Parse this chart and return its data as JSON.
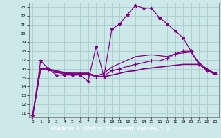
{
  "xlabel": "Windchill (Refroidissement éolien,°C)",
  "bg_color": "#cce8e8",
  "grid_color": "#aacccc",
  "line_color": "#800080",
  "xlabel_bg": "#660066",
  "xlabel_fg": "#ffffff",
  "xlim": [
    -0.5,
    23.5
  ],
  "ylim": [
    10.5,
    23.5
  ],
  "xticks": [
    0,
    1,
    2,
    3,
    4,
    5,
    6,
    7,
    8,
    9,
    10,
    11,
    12,
    13,
    14,
    15,
    16,
    17,
    18,
    19,
    20,
    21,
    22,
    23
  ],
  "yticks": [
    11,
    12,
    13,
    14,
    15,
    16,
    17,
    18,
    19,
    20,
    21,
    22,
    23
  ],
  "series": [
    {
      "x": [
        0,
        1,
        2,
        3,
        4,
        5,
        6,
        7,
        8,
        9,
        10,
        11,
        12,
        13,
        14,
        15,
        16,
        17,
        18,
        19,
        20,
        21,
        22,
        23
      ],
      "y": [
        10.7,
        16.9,
        16.0,
        15.3,
        15.3,
        15.3,
        15.3,
        14.6,
        18.5,
        15.1,
        20.5,
        21.1,
        22.2,
        23.2,
        22.9,
        22.9,
        21.8,
        21.1,
        20.3,
        19.5,
        18.0,
        16.5,
        15.9,
        15.5
      ],
      "marker": "*",
      "markersize": 3.5,
      "linewidth": 0.9
    },
    {
      "x": [
        0,
        1,
        2,
        3,
        4,
        5,
        6,
        7,
        8,
        9,
        10,
        11,
        12,
        13,
        14,
        15,
        16,
        17,
        18,
        19,
        20,
        21,
        22,
        23
      ],
      "y": [
        10.7,
        16.0,
        16.0,
        15.6,
        15.4,
        15.4,
        15.4,
        15.4,
        15.1,
        15.2,
        15.8,
        16.0,
        16.3,
        16.5,
        16.7,
        16.9,
        16.9,
        17.2,
        17.7,
        18.0,
        18.0,
        16.5,
        15.8,
        15.4
      ],
      "marker": "+",
      "markersize": 4,
      "linewidth": 0.9
    },
    {
      "x": [
        0,
        1,
        2,
        3,
        4,
        5,
        6,
        7,
        8,
        9,
        10,
        11,
        12,
        13,
        14,
        15,
        16,
        17,
        18,
        19,
        20,
        21,
        22,
        23
      ],
      "y": [
        10.7,
        16.0,
        16.0,
        15.7,
        15.5,
        15.5,
        15.5,
        15.5,
        15.2,
        15.1,
        15.3,
        15.5,
        15.7,
        15.8,
        16.0,
        16.1,
        16.2,
        16.3,
        16.4,
        16.5,
        16.5,
        16.5,
        15.9,
        15.4
      ],
      "marker": null,
      "markersize": 0,
      "linewidth": 1.2
    },
    {
      "x": [
        0,
        1,
        2,
        3,
        4,
        5,
        6,
        7,
        8,
        9,
        10,
        11,
        12,
        13,
        14,
        15,
        16,
        17,
        18,
        19,
        20,
        21,
        22,
        23
      ],
      "y": [
        10.7,
        16.0,
        16.0,
        15.8,
        15.6,
        15.5,
        15.5,
        15.5,
        15.2,
        15.5,
        16.2,
        16.6,
        17.0,
        17.4,
        17.5,
        17.6,
        17.5,
        17.4,
        17.7,
        17.8,
        17.9,
        16.7,
        16.0,
        15.5
      ],
      "marker": null,
      "markersize": 0,
      "linewidth": 0.9
    }
  ]
}
